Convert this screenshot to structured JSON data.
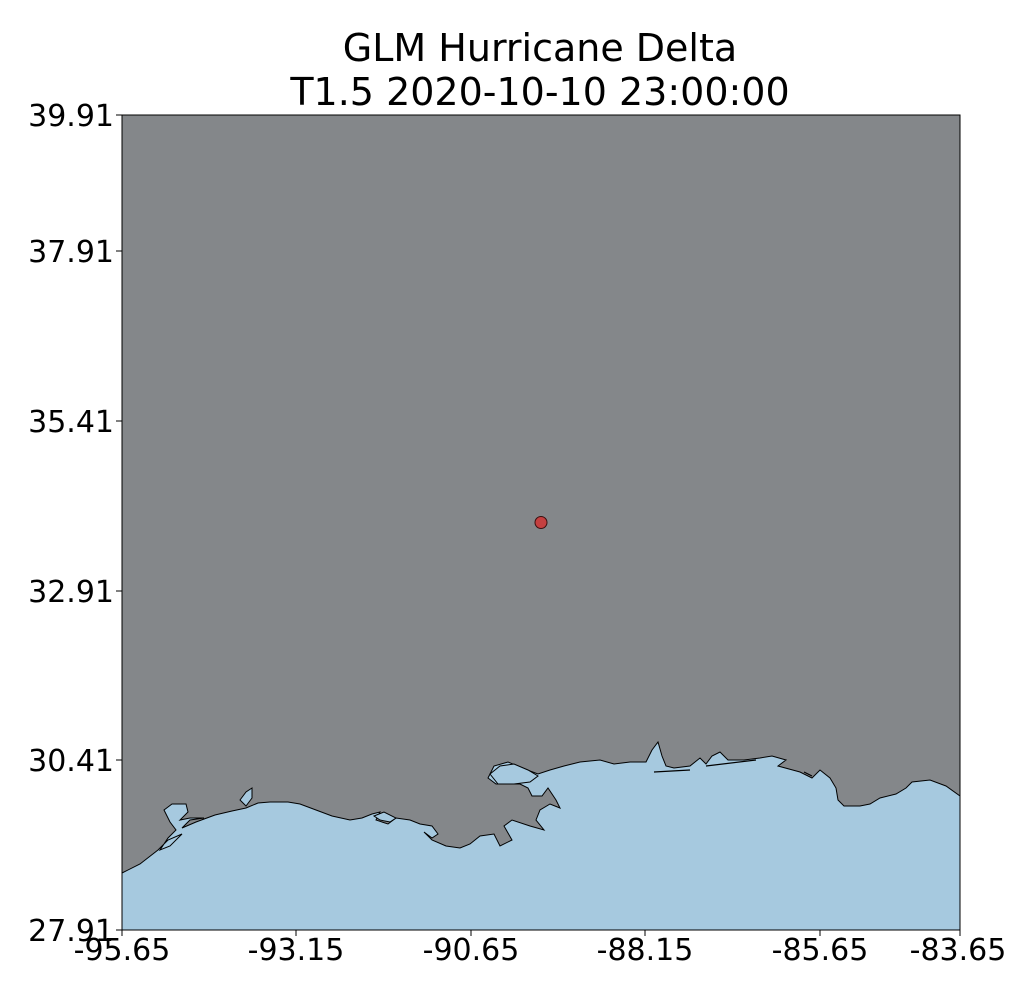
{
  "figure": {
    "title_line1": "GLM Hurricane Delta",
    "title_line2": "T1.5 2020-10-10 23:00:00"
  },
  "map": {
    "land_color": "#84878a",
    "water_color": "#a6c9df",
    "point_color": "#c44040",
    "point": {
      "lon": -89.65,
      "lat": 33.91
    },
    "x_ticks": [
      "-95.65",
      "-93.15",
      "-90.65",
      "-88.15",
      "-85.65",
      "-83.65"
    ],
    "y_ticks": [
      "39.91",
      "37.91",
      "35.41",
      "32.91",
      "30.41",
      "27.91"
    ],
    "x_range": [
      -95.65,
      -83.65
    ],
    "y_range": [
      27.91,
      39.91
    ]
  }
}
